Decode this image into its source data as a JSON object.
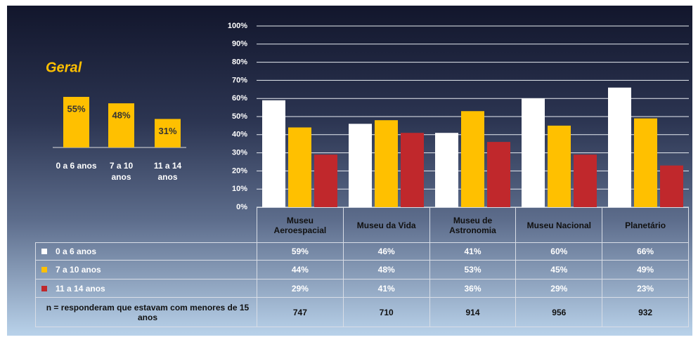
{
  "chart_data": [
    {
      "type": "bar",
      "title": "Geral",
      "categories": [
        "0 a 6 anos",
        "7 a 10 anos",
        "11 a 14 anos"
      ],
      "values": [
        55,
        48,
        31
      ],
      "value_labels": [
        "55%",
        "48%",
        "31%"
      ],
      "color": "#ffc000"
    },
    {
      "type": "bar",
      "categories": [
        "Museu Aeroespacial",
        "Museu da Vida",
        "Museu de Astronomia",
        "Museu Nacional",
        "Planetário"
      ],
      "series": [
        {
          "name": "0 a 6 anos",
          "color": "#ffffff",
          "values": [
            59,
            46,
            41,
            60,
            66
          ],
          "value_labels": [
            "59%",
            "46%",
            "41%",
            "60%",
            "66%"
          ]
        },
        {
          "name": "7 a 10 anos",
          "color": "#ffc000",
          "values": [
            44,
            48,
            53,
            45,
            49
          ],
          "value_labels": [
            "44%",
            "48%",
            "53%",
            "45%",
            "49%"
          ]
        },
        {
          "name": "11 a 14 anos",
          "color": "#c0282c",
          "values": [
            29,
            41,
            36,
            29,
            23
          ],
          "value_labels": [
            "29%",
            "41%",
            "36%",
            "29%",
            "23%"
          ]
        }
      ],
      "ylim": [
        0,
        100
      ],
      "yticks": [
        {
          "value": 0,
          "label": "0%"
        },
        {
          "value": 10,
          "label": "10%"
        },
        {
          "value": 20,
          "label": "20%"
        },
        {
          "value": 30,
          "label": "30%"
        },
        {
          "value": 40,
          "label": "40%"
        },
        {
          "value": 50,
          "label": "50%"
        },
        {
          "value": 60,
          "label": "60%"
        },
        {
          "value": 70,
          "label": "70%"
        },
        {
          "value": 80,
          "label": "80%"
        },
        {
          "value": 90,
          "label": "90%"
        },
        {
          "value": 100,
          "label": "100%"
        }
      ],
      "grid": true,
      "n_label": "n = responderam que estavam com menores de 15 anos",
      "n_values": [
        747,
        710,
        914,
        956,
        932
      ]
    }
  ]
}
